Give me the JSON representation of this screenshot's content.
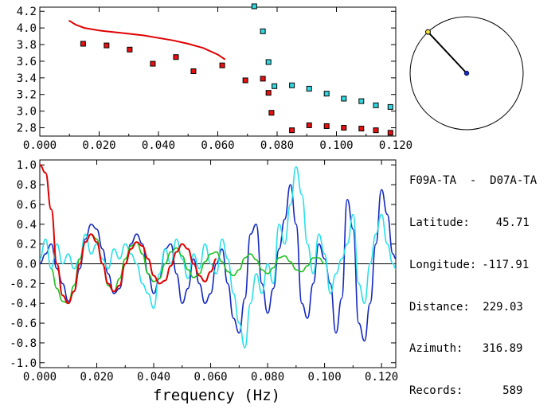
{
  "info": {
    "station_pair": "F09A-TA  -  D07A-TA",
    "lines": [
      {
        "label": "Latitude:",
        "value": "45.71"
      },
      {
        "label": "Longitude:",
        "value": "-117.91"
      },
      {
        "label": "Distance:",
        "value": "229.03"
      },
      {
        "label": "Azimuth:",
        "value": "316.89"
      },
      {
        "label": "Records:",
        "value": "589"
      }
    ]
  },
  "colors": {
    "red": "#e00000",
    "cyan": "#28e0e8",
    "blue": "#1428c0",
    "green": "#20c020",
    "marker_red": "#e81010",
    "marker_cyan": "#30d8e0"
  },
  "chart_data": [
    {
      "type": "scatter",
      "title": "",
      "xlabel": "",
      "ylabel": "",
      "xlim": [
        0.0,
        0.12
      ],
      "ylim": [
        2.7,
        4.25
      ],
      "xticks": [
        "0.000",
        "0.020",
        "0.040",
        "0.060",
        "0.080",
        "0.100",
        "0.120"
      ],
      "yticks": [
        "2.8",
        "3.0",
        "3.2",
        "3.4",
        "3.6",
        "3.8",
        "4.0",
        "4.2"
      ],
      "series": [
        {
          "kind": "line",
          "color": "red",
          "x": [
            0.0098,
            0.012,
            0.015,
            0.02,
            0.025,
            0.03,
            0.035,
            0.04,
            0.045,
            0.05,
            0.055,
            0.06,
            0.0625
          ],
          "y": [
            4.09,
            4.04,
            4.0,
            3.97,
            3.95,
            3.93,
            3.91,
            3.88,
            3.85,
            3.81,
            3.76,
            3.68,
            3.62
          ]
        },
        {
          "kind": "markers",
          "color": "marker_red",
          "x": [
            0.0146,
            0.0225,
            0.0303,
            0.0381,
            0.0459,
            0.0518,
            0.0615,
            0.0693,
            0.0752,
            0.0771,
            0.0781,
            0.085,
            0.0908,
            0.0967,
            0.1025,
            0.1084,
            0.1133,
            0.1182
          ],
          "y": [
            3.81,
            3.79,
            3.74,
            3.57,
            3.65,
            3.48,
            3.55,
            3.37,
            3.39,
            3.22,
            2.98,
            2.77,
            2.83,
            2.82,
            2.8,
            2.79,
            2.77,
            2.74
          ]
        },
        {
          "kind": "markers",
          "color": "marker_cyan",
          "x": [
            0.0723,
            0.0752,
            0.0771,
            0.0791,
            0.085,
            0.0908,
            0.0967,
            0.1025,
            0.1084,
            0.1133,
            0.1182
          ],
          "y": [
            4.26,
            3.96,
            3.59,
            3.3,
            3.31,
            3.27,
            3.21,
            3.15,
            3.12,
            3.07,
            3.05
          ]
        }
      ]
    },
    {
      "type": "line",
      "title": "",
      "xlabel": "frequency (Hz)",
      "ylabel": "",
      "xlim": [
        0.0,
        0.125
      ],
      "ylim": [
        -1.05,
        1.05
      ],
      "xticks": [
        "0.000",
        "0.020",
        "0.040",
        "0.060",
        "0.080",
        "0.100",
        "0.120"
      ],
      "yticks": [
        "1.0",
        "0.8",
        "0.6",
        "0.4",
        "0.2",
        "0.0",
        "-0.2",
        "-0.4",
        "-0.6",
        "-0.8",
        "-1.0"
      ],
      "series": [
        {
          "color": "blue",
          "x": [
            0,
            0.002,
            0.004,
            0.006,
            0.008,
            0.01,
            0.012,
            0.014,
            0.016,
            0.018,
            0.02,
            0.022,
            0.024,
            0.026,
            0.028,
            0.03,
            0.032,
            0.034,
            0.036,
            0.038,
            0.04,
            0.042,
            0.044,
            0.046,
            0.048,
            0.05,
            0.052,
            0.054,
            0.056,
            0.058,
            0.06,
            0.062,
            0.064,
            0.066,
            0.068,
            0.07,
            0.072,
            0.074,
            0.076,
            0.078,
            0.08,
            0.082,
            0.084,
            0.086,
            0.088,
            0.09,
            0.092,
            0.094,
            0.096,
            0.098,
            0.1,
            0.102,
            0.104,
            0.106,
            0.108,
            0.11,
            0.112,
            0.114,
            0.116,
            0.118,
            0.12,
            0.122,
            0.124,
            0.125
          ],
          "y": [
            0.0,
            0.1,
            0.2,
            -0.05,
            -0.2,
            -0.38,
            -0.28,
            -0.05,
            0.25,
            0.4,
            0.35,
            0.15,
            -0.1,
            -0.3,
            -0.25,
            0.0,
            0.2,
            0.3,
            0.2,
            -0.1,
            -0.3,
            -0.15,
            0.15,
            0.2,
            -0.1,
            -0.4,
            -0.25,
            0.05,
            -0.2,
            -0.4,
            -0.3,
            0.0,
            0.15,
            -0.2,
            -0.55,
            -0.7,
            -0.35,
            0.3,
            0.4,
            -0.2,
            -0.5,
            -0.25,
            0.15,
            0.45,
            0.8,
            0.4,
            -0.4,
            -0.55,
            -0.2,
            0.2,
            0.05,
            -0.2,
            -0.7,
            -0.35,
            0.65,
            0.35,
            -0.6,
            -0.78,
            -0.4,
            0.2,
            0.75,
            0.5,
            0.1,
            0.05
          ]
        },
        {
          "color": "cyan",
          "x": [
            0,
            0.002,
            0.004,
            0.006,
            0.008,
            0.01,
            0.012,
            0.014,
            0.016,
            0.018,
            0.02,
            0.022,
            0.024,
            0.026,
            0.028,
            0.03,
            0.032,
            0.034,
            0.036,
            0.038,
            0.04,
            0.042,
            0.044,
            0.046,
            0.048,
            0.05,
            0.052,
            0.054,
            0.056,
            0.058,
            0.06,
            0.062,
            0.064,
            0.066,
            0.068,
            0.07,
            0.072,
            0.074,
            0.076,
            0.078,
            0.08,
            0.082,
            0.084,
            0.086,
            0.088,
            0.09,
            0.092,
            0.094,
            0.096,
            0.098,
            0.1,
            0.102,
            0.104,
            0.106,
            0.108,
            0.11,
            0.112,
            0.114,
            0.116,
            0.118,
            0.12,
            0.122,
            0.124,
            0.125
          ],
          "y": [
            0.05,
            0.25,
            -0.05,
            0.2,
            0.0,
            0.1,
            -0.05,
            0.05,
            0.3,
            0.1,
            0.2,
            0.05,
            -0.05,
            0.15,
            0.05,
            0.2,
            0.1,
            0.0,
            -0.2,
            -0.3,
            -0.45,
            -0.1,
            0.15,
            0.0,
            0.25,
            0.05,
            -0.15,
            0.1,
            -0.05,
            0.2,
            0.0,
            -0.1,
            0.25,
            0.05,
            -0.3,
            -0.6,
            -0.85,
            -0.4,
            -0.1,
            -0.3,
            0.0,
            -0.2,
            0.4,
            0.2,
            0.6,
            0.98,
            0.7,
            0.2,
            -0.1,
            0.3,
            0.1,
            -0.3,
            -0.1,
            0.05,
            0.2,
            0.5,
            -0.2,
            -0.4,
            0.0,
            0.3,
            0.5,
            0.2,
            0.0,
            -0.05
          ]
        },
        {
          "color": "green",
          "x": [
            0.004,
            0.006,
            0.008,
            0.01,
            0.012,
            0.014,
            0.016,
            0.018,
            0.02,
            0.022,
            0.024,
            0.026,
            0.028,
            0.03,
            0.032,
            0.034,
            0.036,
            0.038,
            0.04,
            0.042,
            0.044,
            0.046,
            0.048,
            0.05,
            0.052,
            0.054,
            0.056,
            0.058,
            0.06,
            0.062,
            0.064,
            0.066,
            0.068,
            0.07,
            0.072,
            0.074,
            0.076,
            0.078,
            0.08,
            0.082,
            0.084,
            0.086,
            0.088,
            0.09,
            0.092,
            0.094,
            0.096,
            0.098,
            0.1
          ],
          "y": [
            -0.05,
            -0.25,
            -0.38,
            -0.4,
            -0.22,
            0.05,
            0.22,
            0.3,
            0.25,
            0.0,
            -0.22,
            -0.28,
            -0.15,
            0.05,
            0.18,
            0.22,
            0.1,
            -0.1,
            -0.18,
            -0.15,
            0.0,
            0.12,
            0.16,
            0.08,
            -0.06,
            -0.14,
            -0.1,
            0.02,
            0.1,
            0.12,
            0.02,
            -0.08,
            -0.12,
            -0.06,
            0.06,
            0.1,
            0.04,
            -0.06,
            -0.1,
            -0.04,
            0.06,
            0.08,
            0.02,
            -0.06,
            -0.08,
            -0.02,
            0.06,
            0.06,
            0.0
          ]
        },
        {
          "color": "red",
          "x": [
            0.0,
            0.002,
            0.004,
            0.006,
            0.008,
            0.01,
            0.012,
            0.014,
            0.016,
            0.018,
            0.02,
            0.022,
            0.024,
            0.026,
            0.028,
            0.03,
            0.032,
            0.034,
            0.036,
            0.038,
            0.04,
            0.042,
            0.044,
            0.046,
            0.048,
            0.05,
            0.052,
            0.054,
            0.056,
            0.058,
            0.06,
            0.062
          ],
          "y": [
            1.0,
            0.92,
            0.55,
            0.0,
            -0.32,
            -0.4,
            -0.28,
            0.0,
            0.22,
            0.3,
            0.22,
            0.0,
            -0.2,
            -0.28,
            -0.22,
            0.0,
            0.15,
            0.22,
            0.18,
            0.05,
            -0.12,
            -0.2,
            -0.17,
            -0.02,
            0.12,
            0.2,
            0.15,
            0.0,
            -0.12,
            -0.18,
            -0.08,
            0.05
          ]
        }
      ]
    },
    {
      "type": "scatter",
      "title": "",
      "series": [
        {
          "name": "",
          "azimuth_deg": 316.89,
          "radius_fraction": 1.0
        }
      ]
    }
  ]
}
